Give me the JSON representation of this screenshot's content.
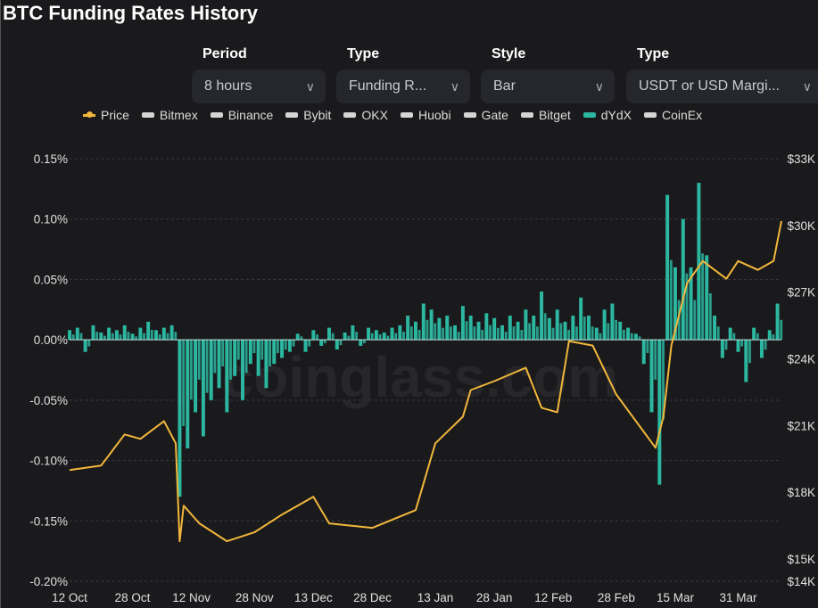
{
  "title": "BTC Funding Rates History",
  "controls": [
    {
      "label": "Period",
      "value": "8 hours"
    },
    {
      "label": "Type",
      "value": "Funding R..."
    },
    {
      "label": "Style",
      "value": "Bar"
    },
    {
      "label": "Type",
      "value": "USDT or USD Margi..."
    }
  ],
  "watermark": "coinglass.com",
  "colors": {
    "price": "#f2b73c",
    "dydx": "#2bb7a0",
    "other": "#d5d5d5",
    "grid": "#3a3a3e"
  },
  "chart_data": {
    "type": "bar",
    "title": "BTC Funding Rates History",
    "legend": [
      "Price",
      "Bitmex",
      "Binance",
      "Bybit",
      "OKX",
      "Huobi",
      "Gate",
      "Bitget",
      "dYdX",
      "CoinEx"
    ],
    "legend_placement": "top",
    "x_ticks": [
      "12 Oct",
      "28 Oct",
      "12 Nov",
      "28 Nov",
      "13 Dec",
      "28 Dec",
      "13 Jan",
      "28 Jan",
      "12 Feb",
      "28 Feb",
      "15 Mar",
      "31 Mar"
    ],
    "y_left_ticks": [
      "0.15%",
      "0.10%",
      "0.05%",
      "0.00%",
      "-0.05%",
      "-0.10%",
      "-0.15%",
      "-0.20%"
    ],
    "y_left_range": [
      -0.2,
      0.15
    ],
    "y_right_ticks": [
      "$33K",
      "$30K",
      "$27K",
      "$24K",
      "$21K",
      "$18K",
      "$15K",
      "$14K"
    ],
    "y_right_range_k": [
      14,
      33
    ],
    "x_range_days": [
      0,
      181
    ],
    "series": [
      {
        "name": "dYdX",
        "kind": "bar",
        "unit": "% funding rate, every 2 days from 12 Oct",
        "values": [
          0.008,
          0.01,
          -0.01,
          0.012,
          0.006,
          0.01,
          0.008,
          0.012,
          0.005,
          0.01,
          0.015,
          0.008,
          0.01,
          0.012,
          -0.13,
          -0.09,
          -0.06,
          -0.08,
          -0.05,
          -0.04,
          -0.06,
          -0.03,
          -0.05,
          -0.02,
          -0.03,
          -0.04,
          -0.02,
          -0.015,
          -0.01,
          0.005,
          -0.01,
          0.008,
          -0.005,
          0.01,
          -0.008,
          0.006,
          0.012,
          -0.005,
          0.01,
          0.008,
          0.006,
          0.01,
          0.012,
          0.02,
          0.015,
          0.03,
          0.025,
          0.018,
          0.02,
          0.012,
          0.028,
          0.02,
          0.015,
          0.022,
          0.018,
          0.012,
          0.02,
          0.015,
          0.025,
          0.02,
          0.04,
          0.018,
          0.025,
          0.015,
          0.02,
          0.035,
          0.02,
          0.01,
          0.025,
          0.03,
          0.015,
          0.01,
          0.005,
          -0.02,
          -0.06,
          -0.12,
          0.12,
          0.06,
          0.1,
          0.06,
          0.13,
          0.07,
          0.02,
          -0.015,
          0.01,
          -0.01,
          -0.035,
          0.01,
          -0.015,
          0.008,
          0.03
        ]
      },
      {
        "name": "Price",
        "kind": "line",
        "unit": "USD thousands, [day since 12 Oct, price]",
        "points": [
          [
            0,
            19.0
          ],
          [
            8,
            19.2
          ],
          [
            14,
            20.6
          ],
          [
            18,
            20.4
          ],
          [
            24,
            21.2
          ],
          [
            27,
            20.2
          ],
          [
            28,
            15.8
          ],
          [
            29,
            17.4
          ],
          [
            33,
            16.6
          ],
          [
            40,
            15.8
          ],
          [
            47,
            16.2
          ],
          [
            54,
            17.0
          ],
          [
            62,
            17.8
          ],
          [
            66,
            16.6
          ],
          [
            77,
            16.4
          ],
          [
            88,
            17.2
          ],
          [
            93,
            20.2
          ],
          [
            100,
            21.4
          ],
          [
            102,
            22.6
          ],
          [
            108,
            23.0
          ],
          [
            116,
            23.6
          ],
          [
            120,
            21.8
          ],
          [
            124,
            21.6
          ],
          [
            127,
            24.8
          ],
          [
            133,
            24.6
          ],
          [
            139,
            22.4
          ],
          [
            149,
            20.0
          ],
          [
            151,
            21.4
          ],
          [
            153,
            24.6
          ],
          [
            157,
            27.4
          ],
          [
            161,
            28.4
          ],
          [
            167,
            27.6
          ],
          [
            170,
            28.4
          ],
          [
            175,
            28.0
          ],
          [
            179,
            28.4
          ],
          [
            181,
            30.2
          ]
        ]
      }
    ]
  }
}
